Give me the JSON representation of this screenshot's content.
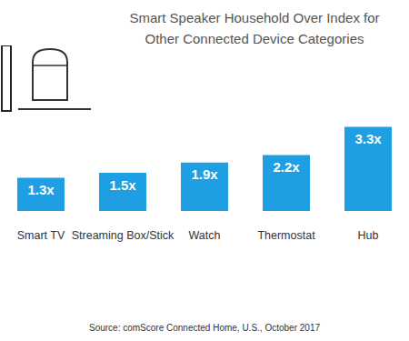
{
  "chart_data": {
    "type": "bar",
    "title": "Smart Speaker Household Over Index for Other Connected Device Categories",
    "categories": [
      "Smart TV",
      "Streaming Box/Stick",
      "Watch",
      "Thermostat",
      "Hub"
    ],
    "values": [
      1.3,
      1.5,
      1.9,
      2.2,
      3.3
    ],
    "value_labels": [
      "1.3x",
      "1.5x",
      "1.9x",
      "2.2x",
      "3.3x"
    ],
    "data_labels": true,
    "color": "#1e9fe3",
    "ylim": [
      0,
      3.5
    ],
    "tick_labels": "x",
    "grid": false,
    "source": "Source: comScore Connected Home, U.S., October 2017"
  }
}
